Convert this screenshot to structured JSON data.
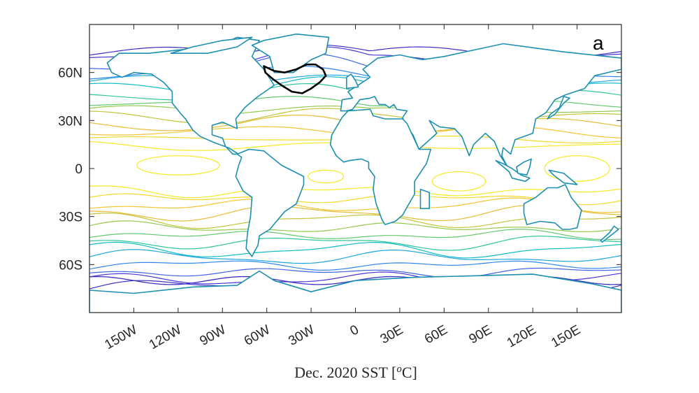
{
  "figure": {
    "panel_label": "a",
    "xlabel": "Dec. 2020 SST [",
    "xlabel_sup": "o",
    "xlabel_end": "C]",
    "lat_ticks": [
      "60N",
      "30N",
      "0",
      "30S",
      "60S"
    ],
    "lon_ticks": [
      "150W",
      "120W",
      "90W",
      "60W",
      "30W",
      "0",
      "30E",
      "60E",
      "90E",
      "120E",
      "150E"
    ]
  },
  "map": {
    "type": "contour map",
    "variable": "sea surface temperature",
    "projection": "equirectangular",
    "lon_range": [
      -180,
      180
    ],
    "lat_range": [
      -90,
      90
    ],
    "lat_tick_values": [
      60,
      30,
      0,
      -30,
      -60
    ],
    "lon_tick_values": [
      -150,
      -120,
      -90,
      -60,
      -30,
      0,
      30,
      60,
      90,
      120,
      150
    ],
    "contour_colors": [
      "#3b2fc2",
      "#4536d6",
      "#3e63e5",
      "#2f86ec",
      "#1ca6e0",
      "#12bcc4",
      "#2ec59a",
      "#63c96f",
      "#93c94c",
      "#c2c43b",
      "#e6bd35",
      "#f3c532",
      "#f5d92a",
      "#f6ea22"
    ],
    "outline_color": "#000000",
    "land_color": "#ffffff"
  }
}
